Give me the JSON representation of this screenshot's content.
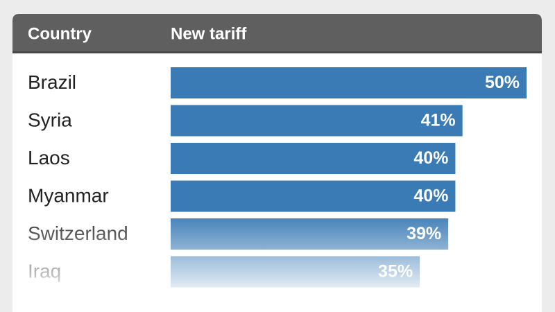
{
  "chart_data": {
    "type": "bar",
    "orientation": "horizontal",
    "category_header": "Country",
    "value_header": "New tariff",
    "categories": [
      "Brazil",
      "Syria",
      "Laos",
      "Myanmar",
      "Switzerland",
      "Iraq"
    ],
    "values": [
      50,
      41,
      40,
      40,
      39,
      35
    ],
    "value_labels": [
      "50%",
      "41%",
      "40%",
      "40%",
      "39%",
      "35%"
    ],
    "color": "#3a7ab5",
    "xlim": [
      0,
      50
    ]
  }
}
